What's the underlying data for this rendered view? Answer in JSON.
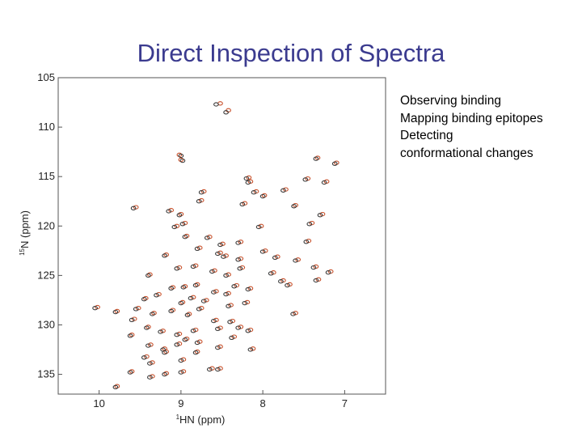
{
  "slide": {
    "title": "Direct Inspection of Spectra",
    "bullets": [
      "Observing binding",
      "Mapping binding epitopes",
      "Detecting",
      "conformational changes"
    ]
  },
  "chart_data": {
    "type": "scatter",
    "title": "",
    "xlabel": "HN (ppm)",
    "xlabel_superscript": "1",
    "ylabel": "N (ppm)",
    "ylabel_superscript": "15",
    "xlim": [
      10.5,
      6.5
    ],
    "ylim": [
      105,
      137
    ],
    "x_reversed": true,
    "y_reversed": true,
    "xticks": [
      10,
      9,
      8,
      7
    ],
    "yticks": [
      105,
      110,
      115,
      120,
      125,
      130,
      135
    ],
    "grid": false,
    "legend": "none",
    "colors": {
      "reference": "#3a3a3a",
      "bound": "#c8502a"
    },
    "series": [
      {
        "color_key": "reference",
        "x": [
          8.57,
          8.45,
          8.98,
          9.0,
          8.75,
          8.2,
          8.18,
          8.11,
          7.48,
          7.35,
          7.12,
          7.25,
          7.75,
          8.0,
          8.25,
          8.78,
          9.02,
          9.58,
          9.15,
          8.98,
          9.08,
          8.68,
          8.52,
          8.3,
          8.05,
          7.62,
          7.43,
          7.3,
          7.47,
          8.95,
          8.8,
          8.55,
          8.48,
          8.3,
          8.0,
          7.85,
          7.6,
          7.38,
          7.2,
          9.2,
          9.05,
          8.85,
          8.62,
          8.45,
          8.28,
          7.9,
          7.78,
          9.4,
          9.12,
          8.97,
          8.82,
          8.6,
          8.45,
          8.35,
          8.18,
          7.7,
          7.35,
          9.45,
          9.3,
          9.0,
          8.88,
          8.72,
          8.42,
          8.22,
          7.63,
          9.8,
          9.55,
          9.35,
          9.12,
          8.92,
          8.78,
          8.6,
          8.4,
          8.3,
          10.05,
          9.6,
          9.42,
          9.25,
          9.05,
          8.85,
          8.55,
          8.38,
          8.18,
          9.62,
          9.4,
          9.22,
          9.05,
          8.8,
          8.55,
          9.45,
          9.2,
          9.0,
          8.65,
          8.15,
          9.38,
          9.0,
          8.55,
          9.62,
          9.38,
          9.2,
          9.8,
          8.95,
          8.82
        ],
        "y": [
          107.7,
          108.5,
          113.4,
          112.9,
          116.6,
          115.2,
          115.6,
          116.6,
          115.3,
          113.2,
          113.7,
          115.6,
          116.4,
          117.0,
          117.8,
          117.5,
          118.9,
          118.2,
          118.5,
          119.8,
          120.1,
          121.2,
          121.9,
          121.7,
          120.1,
          118.0,
          119.8,
          118.9,
          121.6,
          121.1,
          122.3,
          122.8,
          123.1,
          123.4,
          122.6,
          123.2,
          123.5,
          124.2,
          124.7,
          123.0,
          124.3,
          124.1,
          124.6,
          125.0,
          124.3,
          124.8,
          125.6,
          125.0,
          126.3,
          126.2,
          126.0,
          126.7,
          126.9,
          126.1,
          126.4,
          126.0,
          125.5,
          127.4,
          127.0,
          127.8,
          127.3,
          127.6,
          128.1,
          127.8,
          128.9,
          128.7,
          128.4,
          128.9,
          128.6,
          129.0,
          128.4,
          129.6,
          129.7,
          130.3,
          128.3,
          129.5,
          130.3,
          130.7,
          131.0,
          130.6,
          130.4,
          131.3,
          130.6,
          131.1,
          132.1,
          132.5,
          132.0,
          131.8,
          132.3,
          133.3,
          132.8,
          133.6,
          134.5,
          132.5,
          133.9,
          134.8,
          134.5,
          134.8,
          135.3,
          135.0,
          136.3,
          131.5,
          132.8
        ]
      },
      {
        "color_key": "bound",
        "x": [
          8.52,
          8.42,
          9.0,
          9.02,
          8.72,
          8.17,
          8.15,
          8.08,
          7.45,
          7.33,
          7.1,
          7.22,
          7.72,
          7.98,
          8.22,
          8.75,
          9.0,
          9.55,
          9.12,
          8.95,
          9.05,
          8.65,
          8.49,
          8.27,
          8.02,
          7.6,
          7.4,
          7.27,
          7.44,
          8.93,
          8.77,
          8.52,
          8.45,
          8.27,
          7.97,
          7.82,
          7.57,
          7.35,
          7.17,
          9.18,
          9.02,
          8.82,
          8.59,
          8.42,
          8.25,
          7.87,
          7.75,
          9.38,
          9.1,
          8.95,
          8.8,
          8.57,
          8.42,
          8.32,
          8.15,
          7.67,
          7.32,
          9.43,
          9.27,
          8.98,
          8.85,
          8.69,
          8.39,
          8.19,
          7.6,
          9.78,
          9.52,
          9.33,
          9.1,
          8.9,
          8.75,
          8.57,
          8.37,
          8.27,
          10.02,
          9.57,
          9.4,
          9.22,
          9.02,
          8.82,
          8.52,
          8.35,
          8.15,
          9.6,
          9.37,
          9.2,
          9.02,
          8.77,
          8.52,
          9.42,
          9.18,
          8.97,
          8.62,
          8.12,
          9.35,
          8.97,
          8.52,
          9.6,
          9.35,
          9.18,
          9.78,
          8.93,
          8.8
        ],
        "y": [
          107.6,
          108.3,
          113.3,
          112.8,
          116.5,
          115.1,
          115.5,
          116.5,
          115.2,
          113.1,
          113.6,
          115.5,
          116.3,
          116.9,
          117.7,
          117.4,
          118.8,
          118.1,
          118.4,
          119.7,
          120.0,
          121.1,
          121.8,
          121.6,
          120.0,
          117.9,
          119.7,
          118.8,
          121.5,
          121.0,
          122.2,
          122.7,
          123.0,
          123.3,
          122.5,
          123.1,
          123.4,
          124.1,
          124.6,
          122.9,
          124.2,
          124.0,
          124.5,
          124.9,
          124.2,
          124.7,
          125.5,
          124.9,
          126.2,
          126.1,
          125.9,
          126.6,
          126.8,
          126.0,
          126.3,
          125.9,
          125.4,
          127.3,
          126.9,
          127.7,
          127.2,
          127.5,
          128.0,
          127.7,
          128.8,
          128.6,
          128.3,
          128.8,
          128.5,
          128.9,
          128.3,
          129.5,
          129.6,
          130.2,
          128.2,
          129.4,
          130.2,
          130.6,
          130.9,
          130.5,
          130.3,
          131.2,
          130.5,
          131.0,
          132.0,
          132.4,
          131.9,
          131.7,
          132.2,
          133.2,
          132.7,
          133.5,
          134.4,
          132.4,
          133.8,
          134.7,
          134.4,
          134.7,
          135.2,
          134.9,
          136.2,
          131.4,
          132.7
        ]
      }
    ]
  }
}
